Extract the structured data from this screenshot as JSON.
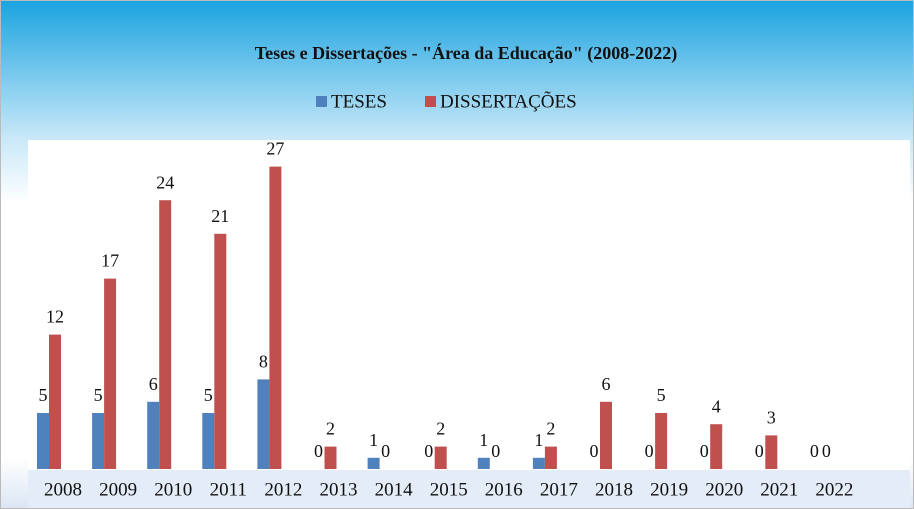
{
  "chart_data": {
    "type": "bar",
    "title": "Teses e Dissertações - \"Área da Educação\" (2008-2022)",
    "categories": [
      "2008",
      "2009",
      "2010",
      "2011",
      "2012",
      "2013",
      "2014",
      "2015",
      "2016",
      "2017",
      "2018",
      "2019",
      "2020",
      "2021",
      "2022"
    ],
    "series": [
      {
        "name": "TESES",
        "color": "#4f81bd",
        "values": [
          5,
          5,
          6,
          5,
          8,
          0,
          1,
          0,
          1,
          1,
          0,
          0,
          0,
          0,
          0
        ]
      },
      {
        "name": "DISSERTAÇÕES",
        "color": "#c0504d",
        "values": [
          12,
          17,
          24,
          21,
          27,
          2,
          0,
          2,
          0,
          2,
          6,
          5,
          4,
          3,
          0
        ]
      }
    ],
    "ylim": [
      0,
      30
    ],
    "legend": "top"
  }
}
